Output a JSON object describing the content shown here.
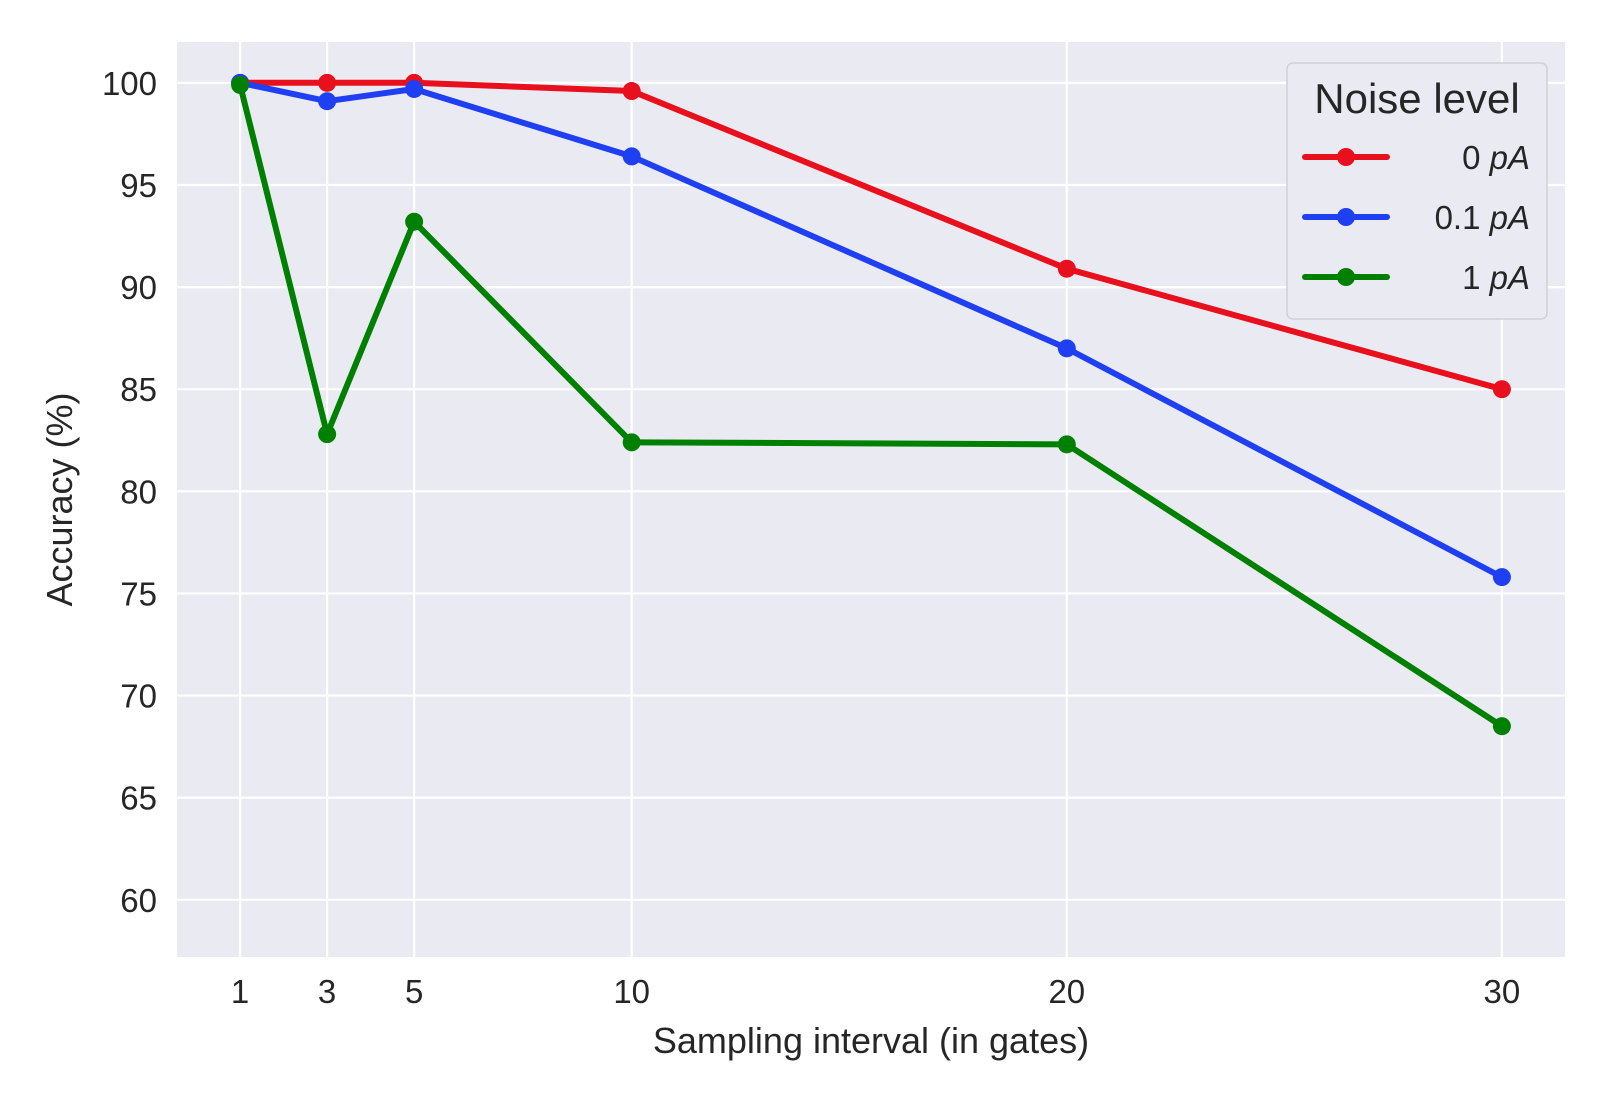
{
  "chart_data": {
    "type": "line",
    "xlabel": "Sampling interval (in gates)",
    "ylabel": "Accuracy (%)",
    "x": [
      1,
      3,
      5,
      10,
      20,
      30
    ],
    "xticks": [
      1,
      3,
      5,
      10,
      20,
      30
    ],
    "yticks": [
      60,
      65,
      70,
      75,
      80,
      85,
      90,
      95,
      100
    ],
    "xlim": [
      -0.45,
      31.45
    ],
    "ylim": [
      57.2,
      102
    ],
    "grid": true,
    "legend_position": "top-right",
    "legend_title": "Noise level",
    "background": "#eaeaf2",
    "series": [
      {
        "name": "0 pA",
        "name_value": "0",
        "name_unit": "pA",
        "color": "#e8101c",
        "values": [
          100,
          100,
          100,
          99.6,
          90.9,
          85.0
        ]
      },
      {
        "name": "0.1 pA",
        "name_value": "0.1",
        "name_unit": "pA",
        "color": "#1f3ff2",
        "values": [
          100,
          99.1,
          99.7,
          96.4,
          87.0,
          75.8
        ]
      },
      {
        "name": "1 pA",
        "name_value": "1",
        "name_unit": "pA",
        "color": "#008000",
        "values": [
          99.9,
          82.8,
          93.2,
          82.4,
          82.3,
          68.5
        ]
      }
    ]
  }
}
